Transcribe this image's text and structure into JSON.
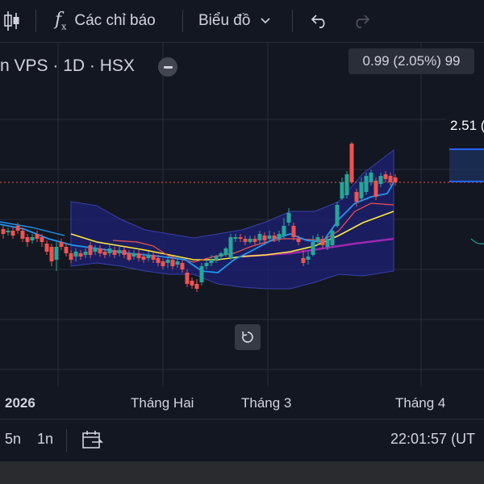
{
  "toolbar": {
    "indicators_label": "Các chỉ báo",
    "chart_type_label": "Biểu đồ"
  },
  "chart": {
    "symbol": "n VPS · 1D · HSX",
    "tooltip": "0.99 (2.05%) 99",
    "price_tag": "2.51 (",
    "time_labels": [
      "2026",
      "Tháng Hai",
      "Tháng 3",
      "Tháng 4"
    ],
    "colors": {
      "up": "#26a69a",
      "down": "#ef5350",
      "band": "#2a2e8c",
      "ma_fast": "#2196f3",
      "ma_mid": "#ef5350",
      "ma_slow": "#ffeb3b",
      "ma_long": "#9c27b0"
    }
  },
  "bottom": {
    "range_5y": "5n",
    "range_1y": "1n",
    "clock": "22:01:57 (UT"
  }
}
